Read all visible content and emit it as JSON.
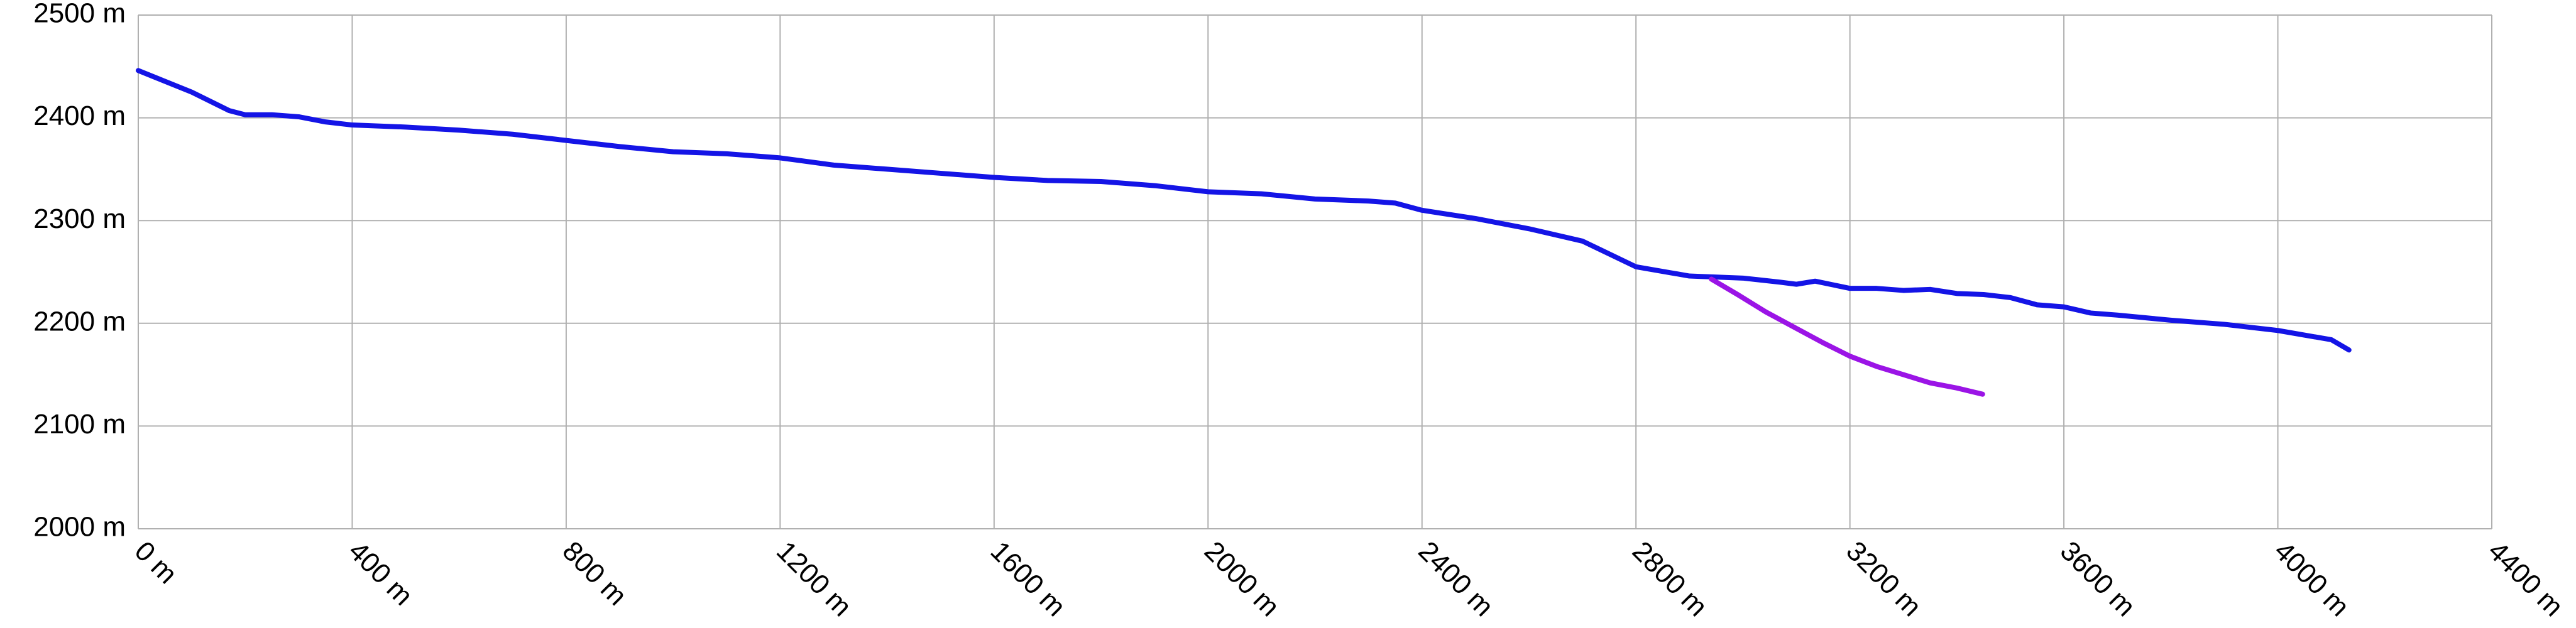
{
  "chart_data": {
    "type": "line",
    "series": [
      {
        "color": "#1414e6",
        "x": [
          0,
          100,
          170,
          200,
          250,
          300,
          350,
          400,
          500,
          600,
          700,
          800,
          900,
          1000,
          1100,
          1200,
          1300,
          1400,
          1500,
          1600,
          1700,
          1800,
          1900,
          2000,
          2100,
          2200,
          2300,
          2350,
          2400,
          2500,
          2600,
          2700,
          2800,
          2900,
          3000,
          3070,
          3100,
          3135,
          3200,
          3250,
          3300,
          3350,
          3400,
          3450,
          3500,
          3550,
          3600,
          3650,
          3700,
          3800,
          3900,
          4000,
          4100,
          4133
        ],
        "values": [
          2446,
          2425,
          2407,
          2403,
          2403,
          2401,
          2396,
          2393,
          2391,
          2388,
          2384,
          2378,
          2372,
          2367,
          2365,
          2361,
          2354,
          2350,
          2346,
          2342,
          2339,
          2338,
          2334,
          2328,
          2326,
          2321,
          2319,
          2317,
          2310,
          2302,
          2292,
          2280,
          2255,
          2246,
          2244,
          2240,
          2238,
          2241,
          2234,
          2234,
          2232,
          2233,
          2229,
          2228,
          2225,
          2218,
          2216,
          2210,
          2208,
          2203,
          2199,
          2193,
          2184,
          2174
        ]
      },
      {
        "color": "#9b14e6",
        "x": [
          2941,
          2990,
          3043,
          3100,
          3150,
          3200,
          3250,
          3300,
          3350,
          3400,
          3448
        ],
        "values": [
          2243,
          2228,
          2211,
          2195,
          2181,
          2168,
          2158,
          2150,
          2142,
          2137,
          2131
        ]
      }
    ],
    "xlim": [
      0,
      4400
    ],
    "xticks": [
      {
        "value": 0,
        "label": "0 m"
      },
      {
        "value": 400,
        "label": "400 m"
      },
      {
        "value": 800,
        "label": "800 m"
      },
      {
        "value": 1200,
        "label": "1200 m"
      },
      {
        "value": 1600,
        "label": "1600 m"
      },
      {
        "value": 2000,
        "label": "2000 m"
      },
      {
        "value": 2400,
        "label": "2400 m"
      },
      {
        "value": 2800,
        "label": "2800 m"
      },
      {
        "value": 3200,
        "label": "3200 m"
      },
      {
        "value": 3600,
        "label": "3600 m"
      },
      {
        "value": 4000,
        "label": "4000 m"
      },
      {
        "value": 4400,
        "label": "4400 m"
      }
    ],
    "ylim": [
      2000,
      2500
    ],
    "yticks": [
      {
        "value": 2000,
        "label": "2000 m"
      },
      {
        "value": 2100,
        "label": "2100 m"
      },
      {
        "value": 2200,
        "label": "2200 m"
      },
      {
        "value": 2300,
        "label": "2300 m"
      },
      {
        "value": 2400,
        "label": "2400 m"
      },
      {
        "value": 2500,
        "label": "2500 m"
      }
    ],
    "grid": true
  }
}
